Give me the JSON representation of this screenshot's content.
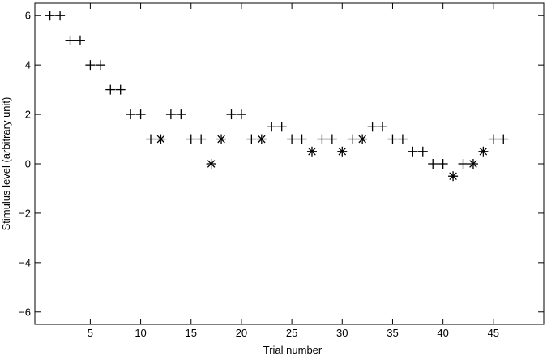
{
  "chart_data": {
    "type": "scatter",
    "xlabel": "Trial number",
    "ylabel": "Stimulus level (arbitrary unit)",
    "xlim": [
      -0.5,
      50
    ],
    "ylim": [
      -6.5,
      6.5
    ],
    "x_ticks": [
      5,
      10,
      15,
      20,
      25,
      30,
      35,
      40,
      45
    ],
    "y_ticks": [
      -6,
      -4,
      -2,
      0,
      2,
      4,
      6
    ],
    "grid": false,
    "series": [
      {
        "marker": "plus",
        "points": [
          [
            1,
            6
          ],
          [
            2,
            6
          ],
          [
            3,
            5
          ],
          [
            4,
            5
          ],
          [
            5,
            4
          ],
          [
            6,
            4
          ],
          [
            7,
            3
          ],
          [
            8,
            3
          ],
          [
            9,
            2
          ],
          [
            10,
            2
          ],
          [
            11,
            1
          ],
          [
            13,
            2
          ],
          [
            14,
            2
          ],
          [
            15,
            1
          ],
          [
            16,
            1
          ],
          [
            19,
            2
          ],
          [
            20,
            2
          ],
          [
            21,
            1
          ],
          [
            23,
            1.5
          ],
          [
            24,
            1.5
          ],
          [
            25,
            1
          ],
          [
            26,
            1
          ],
          [
            28,
            1
          ],
          [
            29,
            1
          ],
          [
            31,
            1
          ],
          [
            33,
            1.5
          ],
          [
            34,
            1.5
          ],
          [
            35,
            1
          ],
          [
            36,
            1
          ],
          [
            37,
            0.5
          ],
          [
            38,
            0.5
          ],
          [
            39,
            0
          ],
          [
            40,
            0
          ],
          [
            42,
            0
          ],
          [
            45,
            1
          ],
          [
            46,
            1
          ]
        ]
      },
      {
        "marker": "asterisk",
        "points": [
          [
            12,
            1
          ],
          [
            17,
            0
          ],
          [
            18,
            1
          ],
          [
            22,
            1
          ],
          [
            27,
            0.5
          ],
          [
            30,
            0.5
          ],
          [
            32,
            1
          ],
          [
            41,
            -0.5
          ],
          [
            43,
            0
          ],
          [
            44,
            0.5
          ]
        ]
      }
    ]
  }
}
